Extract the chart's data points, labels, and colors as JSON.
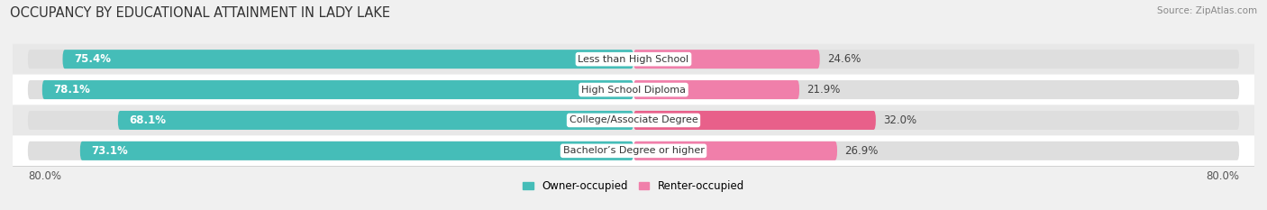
{
  "title": "OCCUPANCY BY EDUCATIONAL ATTAINMENT IN LADY LAKE",
  "source": "Source: ZipAtlas.com",
  "categories": [
    "Less than High School",
    "High School Diploma",
    "College/Associate Degree",
    "Bachelor’s Degree or higher"
  ],
  "owner_pct": [
    75.4,
    78.1,
    68.1,
    73.1
  ],
  "renter_pct": [
    24.6,
    21.9,
    32.0,
    26.9
  ],
  "owner_color": "#45bdb8",
  "renter_color": "#f07faa",
  "renter_color_dark": "#e8608a",
  "background_color": "#f0f0f0",
  "row_bg_odd": "#e8e8e8",
  "row_bg_even": "#ffffff",
  "track_color": "#dedede",
  "x_min": 0.0,
  "x_max": 80.0,
  "x_left_label": "80.0%",
  "x_right_label": "80.0%",
  "title_fontsize": 10.5,
  "label_fontsize": 8.5,
  "bar_height": 0.62,
  "legend_owner": "Owner-occupied",
  "legend_renter": "Renter-occupied"
}
